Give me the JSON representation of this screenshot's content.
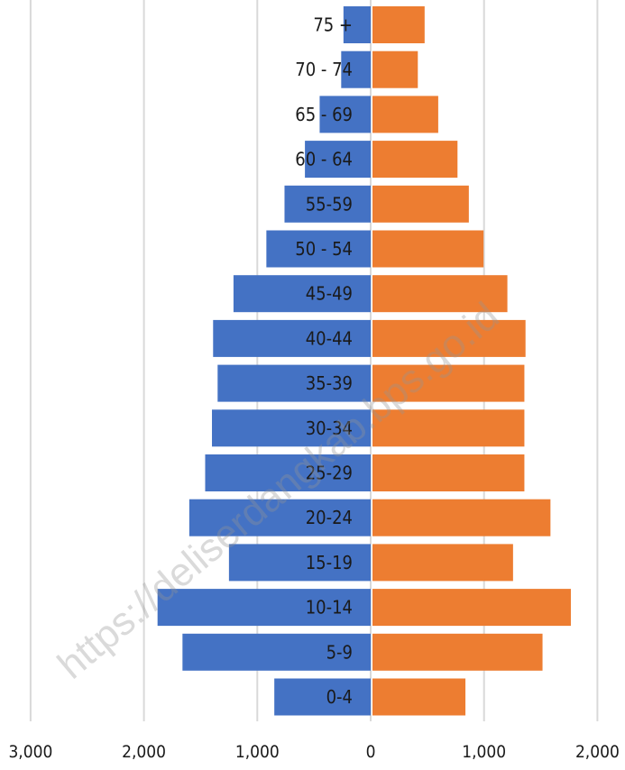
{
  "chart_data": {
    "type": "bar",
    "orientation": "horizontal-population-pyramid",
    "categories": [
      "0-4",
      "5-9",
      "10-14",
      "15-19",
      "20-24",
      "25-29",
      "30-34",
      "35-39",
      "40-44",
      "45-49",
      "50 - 54",
      "55-59",
      "60 - 64",
      "65 - 69",
      "70 - 74",
      "75 +"
    ],
    "series": [
      {
        "color": "#4472c4",
        "values": [
          850,
          1660,
          1880,
          1250,
          1600,
          1460,
          1400,
          1350,
          1390,
          1210,
          920,
          760,
          580,
          450,
          260,
          240
        ]
      },
      {
        "color": "#ed7d31",
        "values": [
          820,
          1500,
          1750,
          1240,
          1570,
          1340,
          1340,
          1340,
          1350,
          1190,
          980,
          850,
          750,
          580,
          400,
          460
        ]
      }
    ],
    "xticks": [
      "3,000",
      "2,000",
      "1,000",
      "0",
      "1,000",
      "2,000"
    ],
    "xlim": [
      -3000,
      2000
    ],
    "grid": true,
    "watermark": "https://deliserdangkab.bps.go.id"
  }
}
